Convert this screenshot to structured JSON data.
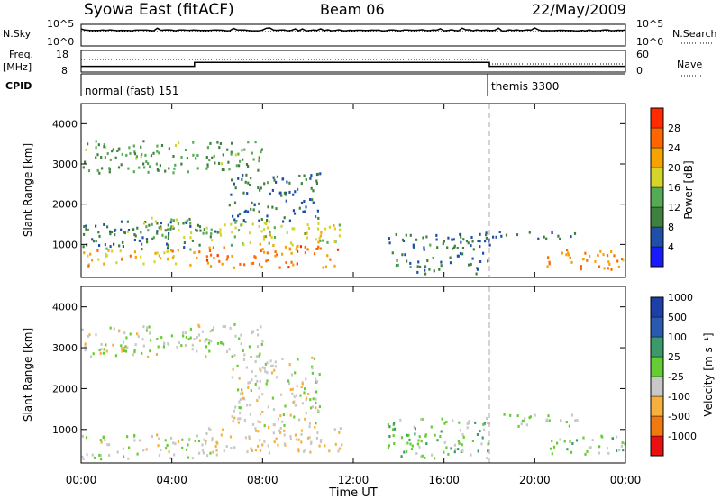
{
  "header": {
    "station": "Syowa East (fitACF)",
    "beam": "Beam 06",
    "date": "22/May/2009"
  },
  "top_panels": {
    "nsky_label": "N.Sky",
    "nsky_ticks": [
      "10^5",
      "10^0"
    ],
    "nsearch_label": "N.Search",
    "freq_label": "Freq.",
    "freq_unit": "[MHz]",
    "freq_ticks": [
      "18",
      "8"
    ],
    "nave_label": "Nave",
    "nave_ticks": [
      "60",
      "0"
    ],
    "cpid_label": "CPID",
    "cpid_modes": [
      {
        "name": "normal (fast) 151",
        "start_h": 0,
        "end_h": 18
      },
      {
        "name": "themis 3300",
        "start_h": 18,
        "end_h": 24
      }
    ],
    "freq_steps": [
      {
        "start_h": 0,
        "end_h": 5,
        "mhz": 10
      },
      {
        "start_h": 5,
        "end_h": 18,
        "mhz": 12
      },
      {
        "start_h": 18,
        "end_h": 24,
        "mhz": 10
      }
    ]
  },
  "colors": {
    "power": [
      "#1a1aff",
      "#1f4fa8",
      "#3f7f3f",
      "#55aa55",
      "#d4d42a",
      "#f5a300",
      "#ff6600",
      "#ff2a00"
    ],
    "velocity": [
      "#e81010",
      "#f07a10",
      "#f5b040",
      "#c8c8c8",
      "#66cc33",
      "#3a9a6a",
      "#2a5ab0",
      "#1e3ea8"
    ]
  },
  "chart_data": [
    {
      "type": "heatmap",
      "name": "power",
      "xlabel": "",
      "ylabel": "Slant Range [km]",
      "xlim": [
        0,
        24
      ],
      "ylim": [
        180,
        4500
      ],
      "x_ticks": [
        "00:00",
        "04:00",
        "08:00",
        "12:00",
        "16:00",
        "20:00",
        "00:00"
      ],
      "y_ticks": [
        1000,
        2000,
        3000,
        4000
      ],
      "colorbar": {
        "label": "Power [dB]",
        "ticks": [
          "4",
          "8",
          "12",
          "16",
          "20",
          "24",
          "28"
        ],
        "range": [
          0,
          30
        ]
      },
      "bands": [
        {
          "h0": 0.0,
          "h1": 5.5,
          "r0": 500,
          "r1": 900,
          "level": 20
        },
        {
          "h0": 0.0,
          "h1": 6.0,
          "r0": 900,
          "r1": 1600,
          "level": 8
        },
        {
          "h0": 2.0,
          "h1": 5.0,
          "r0": 1200,
          "r1": 1700,
          "level": 14
        },
        {
          "h0": 5.5,
          "h1": 11.5,
          "r0": 450,
          "r1": 1000,
          "level": 24
        },
        {
          "h0": 5.5,
          "h1": 11.5,
          "r0": 1000,
          "r1": 1600,
          "level": 16
        },
        {
          "h0": 6.5,
          "h1": 10.5,
          "r0": 1600,
          "r1": 2800,
          "level": 8
        },
        {
          "h0": 13.5,
          "h1": 18.0,
          "r0": 300,
          "r1": 1300,
          "level": 8
        },
        {
          "h0": 17.8,
          "h1": 22.0,
          "r0": 1150,
          "r1": 1350,
          "level": 7
        },
        {
          "h0": 20.5,
          "h1": 24.0,
          "r0": 400,
          "r1": 900,
          "level": 22
        },
        {
          "h0": 0.0,
          "h1": 8.0,
          "r0": 2800,
          "r1": 3600,
          "level": 12
        }
      ]
    },
    {
      "type": "heatmap",
      "name": "velocity",
      "xlabel": "Time UT",
      "ylabel": "Slant Range [km]",
      "xlim": [
        0,
        24
      ],
      "ylim": [
        180,
        4500
      ],
      "x_ticks": [
        "00:00",
        "04:00",
        "08:00",
        "12:00",
        "16:00",
        "20:00",
        "00:00"
      ],
      "y_ticks": [
        1000,
        2000,
        3000,
        4000
      ],
      "colorbar": {
        "label": "Velocity [m s⁻¹]",
        "ticks": [
          "-1000",
          "-500",
          "-100",
          "-25",
          "25",
          "100",
          "500",
          "1000"
        ],
        "range": [
          -1200,
          1200
        ]
      },
      "bands": [
        {
          "h0": 0.0,
          "h1": 5.5,
          "r0": 500,
          "r1": 900,
          "level": -150
        },
        {
          "h0": 0.0,
          "h1": 6.0,
          "r0": 300,
          "r1": 500,
          "level": -50
        },
        {
          "h0": 5.5,
          "h1": 11.5,
          "r0": 450,
          "r1": 1100,
          "level": -300
        },
        {
          "h0": 6.5,
          "h1": 10.5,
          "r0": 1100,
          "r1": 2800,
          "level": -120
        },
        {
          "h0": 13.5,
          "h1": 18.0,
          "r0": 300,
          "r1": 1300,
          "level": 150
        },
        {
          "h0": 17.8,
          "h1": 22.0,
          "r0": 1100,
          "r1": 1400,
          "level": 0
        },
        {
          "h0": 20.5,
          "h1": 24.0,
          "r0": 400,
          "r1": 900,
          "level": 120
        },
        {
          "h0": 0.0,
          "h1": 8.0,
          "r0": 2800,
          "r1": 3600,
          "level": -80
        }
      ]
    }
  ]
}
